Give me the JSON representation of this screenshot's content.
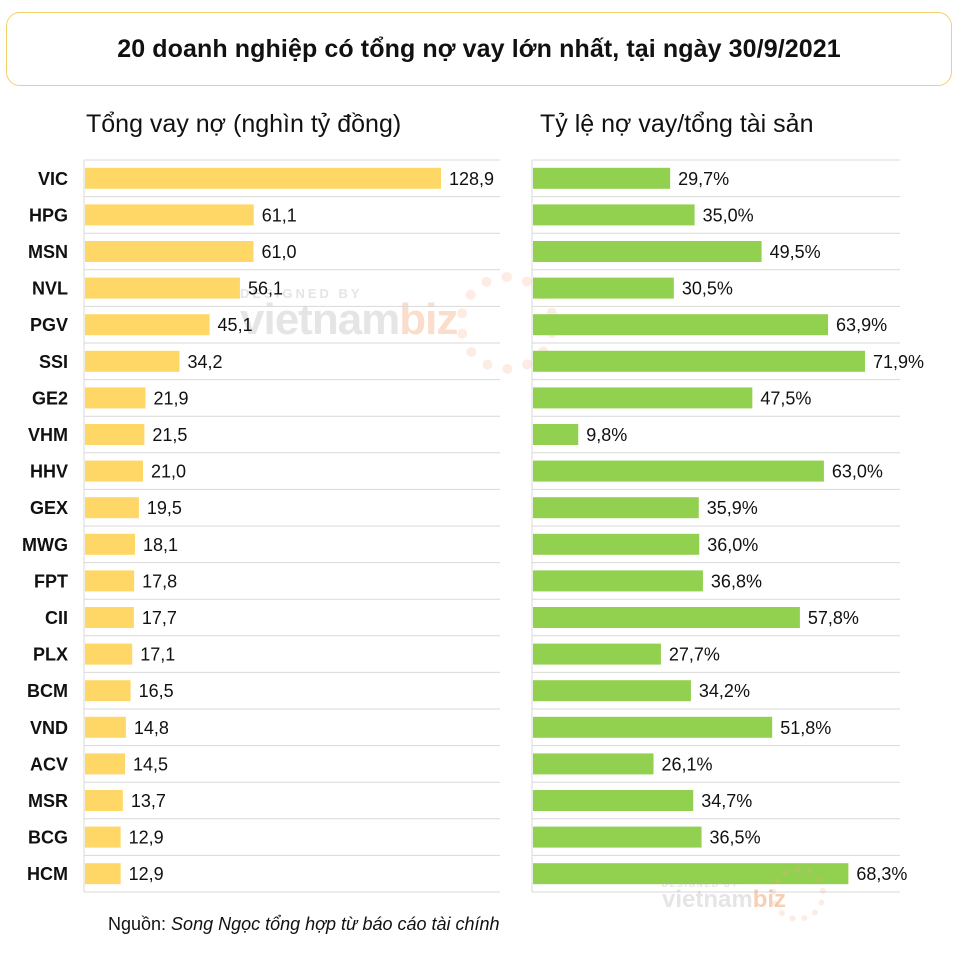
{
  "title": "20 doanh nghiệp có tổng nợ vay lớn nhất, tại ngày 30/9/2021",
  "source": {
    "prefix": "Nguồn: ",
    "text": "Song Ngọc tổng hợp từ  báo cáo tài chính"
  },
  "watermark": {
    "top_line": "DESIGNED BY",
    "brand_a": "vietnam",
    "brand_b": "biz"
  },
  "colors": {
    "left_bar": "#fed766",
    "right_bar": "#92d050",
    "grid": "#d9d9d9",
    "title_border": "#f2d16b"
  },
  "chart_data": [
    {
      "type": "bar",
      "orientation": "horizontal",
      "title": "Tổng vay nợ (nghìn tỷ đồng)",
      "categories": [
        "VIC",
        "HPG",
        "MSN",
        "NVL",
        "PGV",
        "SSI",
        "GE2",
        "VHM",
        "HHV",
        "GEX",
        "MWG",
        "FPT",
        "CII",
        "PLX",
        "BCM",
        "VND",
        "ACV",
        "MSR",
        "BCG",
        "HCM"
      ],
      "values": [
        128.9,
        61.1,
        61.0,
        56.1,
        45.1,
        34.2,
        21.9,
        21.5,
        21.0,
        19.5,
        18.1,
        17.8,
        17.7,
        17.1,
        16.5,
        14.8,
        14.5,
        13.7,
        12.9,
        12.9
      ],
      "value_labels": [
        "128,9",
        "61,1",
        "61,0",
        "56,1",
        "45,1",
        "34,2",
        "21,9",
        "21,5",
        "21,0",
        "19,5",
        "18,1",
        "17,8",
        "17,7",
        "17,1",
        "16,5",
        "14,8",
        "14,5",
        "13,7",
        "12,9",
        "12,9"
      ],
      "xlim": [
        0,
        128.9
      ],
      "grid": true,
      "color": "#fed766"
    },
    {
      "type": "bar",
      "orientation": "horizontal",
      "title": "Tỷ lệ nợ vay/tổng tài sản",
      "categories": [
        "VIC",
        "HPG",
        "MSN",
        "NVL",
        "PGV",
        "SSI",
        "GE2",
        "VHM",
        "HHV",
        "GEX",
        "MWG",
        "FPT",
        "CII",
        "PLX",
        "BCM",
        "VND",
        "ACV",
        "MSR",
        "BCG",
        "HCM"
      ],
      "values": [
        29.7,
        35.0,
        49.5,
        30.5,
        63.9,
        71.9,
        47.5,
        9.8,
        63.0,
        35.9,
        36.0,
        36.8,
        57.8,
        27.7,
        34.2,
        51.8,
        26.1,
        34.7,
        36.5,
        68.3
      ],
      "value_labels": [
        "29,7%",
        "35,0%",
        "49,5%",
        "30,5%",
        "63,9%",
        "71,9%",
        "47,5%",
        "9,8%",
        "63,0%",
        "35,9%",
        "36,0%",
        "36,8%",
        "57,8%",
        "27,7%",
        "34,2%",
        "51,8%",
        "26,1%",
        "34,7%",
        "36,5%",
        "68,3%"
      ],
      "xlim": [
        0,
        71.9
      ],
      "grid": true,
      "color": "#92d050"
    }
  ]
}
